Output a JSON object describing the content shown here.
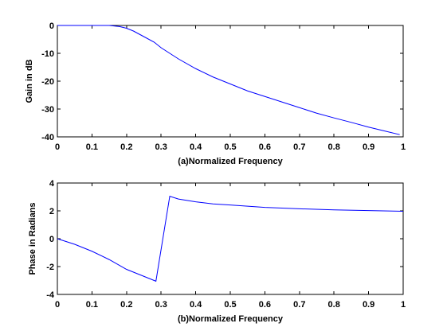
{
  "chart_data": [
    {
      "type": "line",
      "xlabel": "(a)Normalized Frequency",
      "ylabel": "Gain in dB",
      "xlim": [
        0,
        1
      ],
      "ylim": [
        -40,
        0
      ],
      "xticks": [
        "0",
        "0.1",
        "0.2",
        "0.3",
        "0.4",
        "0.5",
        "0.6",
        "0.7",
        "0.8",
        "0.9",
        "1"
      ],
      "yticks": [
        "-40",
        "-30",
        "-20",
        "-10",
        "0"
      ],
      "grid": false,
      "line_color": "#0000ff",
      "series": [
        {
          "x": [
            0,
            0.05,
            0.1,
            0.15,
            0.18,
            0.2,
            0.22,
            0.25,
            0.28,
            0.3,
            0.35,
            0.4,
            0.45,
            0.5,
            0.55,
            0.6,
            0.65,
            0.7,
            0.75,
            0.8,
            0.85,
            0.9,
            0.95,
            0.99
          ],
          "y": [
            0,
            0,
            0,
            0,
            -0.4,
            -1.0,
            -2.0,
            -4.0,
            -6.0,
            -8.0,
            -12.0,
            -15.5,
            -18.5,
            -21.0,
            -23.5,
            -25.5,
            -27.5,
            -29.5,
            -31.5,
            -33.2,
            -34.8,
            -36.5,
            -38.0,
            -39.2
          ]
        }
      ]
    },
    {
      "type": "line",
      "xlabel": "(b)Normalized Frequency",
      "ylabel": "Phase in Radians",
      "xlim": [
        0,
        1
      ],
      "ylim": [
        -4,
        4
      ],
      "xticks": [
        "0",
        "0.1",
        "0.2",
        "0.3",
        "0.4",
        "0.5",
        "0.6",
        "0.7",
        "0.8",
        "0.9",
        "1"
      ],
      "yticks": [
        "-4",
        "-2",
        "0",
        "2",
        "4"
      ],
      "grid": false,
      "line_color": "#0000ff",
      "series": [
        {
          "x": [
            0,
            0.05,
            0.1,
            0.15,
            0.2,
            0.25,
            0.285,
            0.325,
            0.35,
            0.4,
            0.45,
            0.5,
            0.6,
            0.7,
            0.8,
            0.9,
            1.0
          ],
          "y": [
            0,
            -0.4,
            -0.9,
            -1.5,
            -2.2,
            -2.7,
            -3.05,
            3.05,
            2.85,
            2.65,
            2.5,
            2.42,
            2.25,
            2.15,
            2.07,
            2.02,
            1.97
          ]
        }
      ]
    }
  ]
}
